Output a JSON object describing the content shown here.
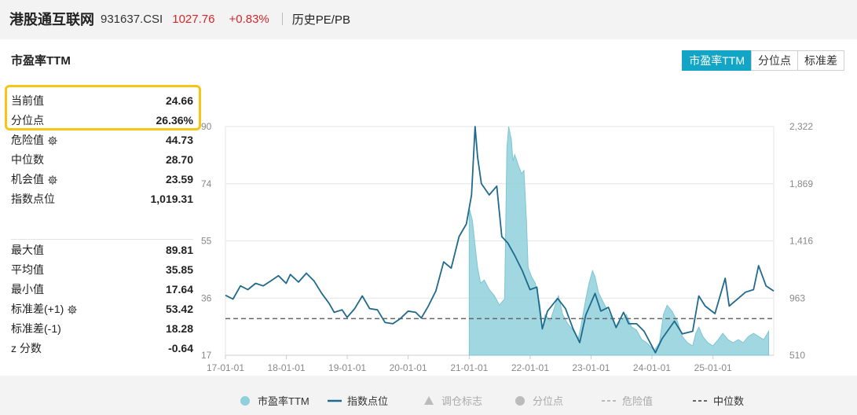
{
  "header": {
    "name": "港股通互联网",
    "code": "931637.CSI",
    "price": "1027.76",
    "change": "+0.83%",
    "history_link": "历史PE/PB"
  },
  "card": {
    "title": "市盈率TTM",
    "tabs": [
      {
        "label": "市盈率TTM",
        "active": true
      },
      {
        "label": "分位点",
        "active": false
      },
      {
        "label": "标准差",
        "active": false
      }
    ]
  },
  "stats": [
    {
      "label": "当前值",
      "value": "24.66",
      "gear": false
    },
    {
      "label": "分位点",
      "value": "26.36%",
      "gear": false
    },
    {
      "label": "危险值",
      "value": "44.73",
      "gear": true
    },
    {
      "label": "中位数",
      "value": "28.70",
      "gear": false
    },
    {
      "label": "机会值",
      "value": "23.59",
      "gear": true
    },
    {
      "label": "指数点位",
      "value": "1,019.31",
      "gear": false
    }
  ],
  "stats2": [
    {
      "label": "最大值",
      "value": "89.81",
      "gear": false
    },
    {
      "label": "平均值",
      "value": "35.85",
      "gear": false
    },
    {
      "label": "最小值",
      "value": "17.64",
      "gear": false
    },
    {
      "label": "标准差(+1)",
      "value": "53.42",
      "gear": true
    },
    {
      "label": "标准差(-1)",
      "value": "18.28",
      "gear": false
    },
    {
      "label": "z 分数",
      "value": "-0.64",
      "gear": false
    }
  ],
  "colors": {
    "pe_fill": "#8fd0dc",
    "index_line": "#1f6a8c",
    "median_line": "#666666",
    "accent": "#13a5c6",
    "highlight": "#f5c518"
  },
  "chart_data": {
    "type": "line",
    "x_tick_labels": [
      "17-01-01",
      "18-01-01",
      "19-01-01",
      "20-01-01",
      "21-01-01",
      "22-01-01",
      "23-01-01",
      "24-01-01",
      "25-01-01"
    ],
    "x_range": [
      "2017-01-01",
      "2025-12-31"
    ],
    "y_left_ticks": [
      "90",
      "74",
      "55",
      "36",
      "17"
    ],
    "y_left_range": [
      17,
      90
    ],
    "y_right_ticks": [
      "2,322",
      "1,869",
      "1,416",
      "963",
      "510"
    ],
    "y_right_range": [
      510,
      2322
    ],
    "median_pe": 28.7,
    "series": [
      {
        "name": "市盈率TTM",
        "axis": "left",
        "style": "area",
        "start": "2021-01-01",
        "points": [
          [
            "2021-01-01",
            64
          ],
          [
            "2021-01-20",
            60
          ],
          [
            "2021-02-05",
            52
          ],
          [
            "2021-02-20",
            45
          ],
          [
            "2021-03-10",
            40
          ],
          [
            "2021-04-01",
            41
          ],
          [
            "2021-05-01",
            38
          ],
          [
            "2021-06-01",
            36
          ],
          [
            "2021-07-01",
            33
          ],
          [
            "2021-08-01",
            35
          ],
          [
            "2021-08-15",
            83
          ],
          [
            "2021-08-25",
            90
          ],
          [
            "2021-09-10",
            86
          ],
          [
            "2021-09-20",
            79
          ],
          [
            "2021-10-01",
            81
          ],
          [
            "2021-10-20",
            78
          ],
          [
            "2021-11-10",
            75
          ],
          [
            "2021-11-25",
            76
          ],
          [
            "2021-12-10",
            60
          ],
          [
            "2021-12-20",
            45
          ],
          [
            "2022-01-10",
            42
          ],
          [
            "2022-02-01",
            40
          ],
          [
            "2022-03-01",
            33
          ],
          [
            "2022-03-15",
            25
          ],
          [
            "2022-04-01",
            30
          ],
          [
            "2022-05-01",
            28
          ],
          [
            "2022-06-01",
            33
          ],
          [
            "2022-06-20",
            36
          ],
          [
            "2022-07-15",
            30
          ],
          [
            "2022-08-15",
            27
          ],
          [
            "2022-09-15",
            25
          ],
          [
            "2022-10-15",
            22
          ],
          [
            "2022-11-01",
            26
          ],
          [
            "2022-12-01",
            35
          ],
          [
            "2022-12-20",
            40
          ],
          [
            "2023-01-10",
            44
          ],
          [
            "2023-01-25",
            42
          ],
          [
            "2023-02-15",
            37
          ],
          [
            "2023-03-15",
            34
          ],
          [
            "2023-05-01",
            29
          ],
          [
            "2023-06-01",
            26
          ],
          [
            "2023-07-01",
            28
          ],
          [
            "2023-08-01",
            30
          ],
          [
            "2023-09-01",
            26
          ],
          [
            "2023-10-01",
            25
          ],
          [
            "2023-11-01",
            22
          ],
          [
            "2023-12-01",
            21
          ],
          [
            "2024-01-15",
            18.5
          ],
          [
            "2024-02-15",
            21
          ],
          [
            "2024-03-10",
            30
          ],
          [
            "2024-04-01",
            33
          ],
          [
            "2024-05-01",
            31
          ],
          [
            "2024-06-01",
            28
          ],
          [
            "2024-07-01",
            23
          ],
          [
            "2024-08-01",
            21
          ],
          [
            "2024-09-01",
            20
          ],
          [
            "2024-09-20",
            24
          ],
          [
            "2024-10-08",
            26
          ],
          [
            "2024-11-01",
            23
          ],
          [
            "2024-12-01",
            21
          ],
          [
            "2025-01-01",
            20
          ],
          [
            "2025-02-01",
            22
          ],
          [
            "2025-03-01",
            24
          ],
          [
            "2025-04-01",
            22
          ],
          [
            "2025-05-01",
            21
          ],
          [
            "2025-06-01",
            22
          ],
          [
            "2025-07-01",
            21
          ],
          [
            "2025-08-01",
            23
          ],
          [
            "2025-09-01",
            24
          ],
          [
            "2025-10-01",
            23
          ],
          [
            "2025-11-01",
            22
          ],
          [
            "2025-12-01",
            24.66
          ]
        ]
      },
      {
        "name": "指数点位",
        "axis": "right",
        "style": "line",
        "points": [
          [
            "2017-01-01",
            985
          ],
          [
            "2017-02-15",
            955
          ],
          [
            "2017-04-01",
            1060
          ],
          [
            "2017-05-15",
            1030
          ],
          [
            "2017-07-01",
            1080
          ],
          [
            "2017-08-15",
            1060
          ],
          [
            "2017-10-01",
            1100
          ],
          [
            "2017-11-15",
            1140
          ],
          [
            "2017-12-31",
            1080
          ],
          [
            "2018-01-25",
            1150
          ],
          [
            "2018-03-15",
            1090
          ],
          [
            "2018-05-01",
            1160
          ],
          [
            "2018-06-15",
            1100
          ],
          [
            "2018-08-01",
            1000
          ],
          [
            "2018-09-15",
            920
          ],
          [
            "2018-10-15",
            850
          ],
          [
            "2018-12-01",
            870
          ],
          [
            "2018-12-31",
            810
          ],
          [
            "2019-02-15",
            880
          ],
          [
            "2019-04-01",
            980
          ],
          [
            "2019-05-15",
            880
          ],
          [
            "2019-07-01",
            870
          ],
          [
            "2019-08-15",
            770
          ],
          [
            "2019-10-01",
            760
          ],
          [
            "2019-11-15",
            800
          ],
          [
            "2020-01-01",
            860
          ],
          [
            "2020-02-15",
            850
          ],
          [
            "2020-03-20",
            805
          ],
          [
            "2020-05-01",
            900
          ],
          [
            "2020-06-15",
            1020
          ],
          [
            "2020-08-01",
            1250
          ],
          [
            "2020-09-15",
            1200
          ],
          [
            "2020-11-01",
            1450
          ],
          [
            "2020-12-15",
            1550
          ],
          [
            "2021-01-15",
            1780
          ],
          [
            "2021-02-05",
            2322
          ],
          [
            "2021-02-20",
            2080
          ],
          [
            "2021-03-15",
            1870
          ],
          [
            "2021-05-01",
            1780
          ],
          [
            "2021-06-15",
            1850
          ],
          [
            "2021-07-15",
            1450
          ],
          [
            "2021-08-20",
            1400
          ],
          [
            "2021-10-01",
            1300
          ],
          [
            "2021-11-15",
            1180
          ],
          [
            "2021-12-31",
            1030
          ],
          [
            "2022-02-10",
            1050
          ],
          [
            "2022-03-15",
            720
          ],
          [
            "2022-04-15",
            860
          ],
          [
            "2022-06-15",
            960
          ],
          [
            "2022-08-01",
            880
          ],
          [
            "2022-09-15",
            720
          ],
          [
            "2022-10-25",
            610
          ],
          [
            "2022-12-01",
            830
          ],
          [
            "2023-01-25",
            1000
          ],
          [
            "2023-03-01",
            860
          ],
          [
            "2023-04-15",
            890
          ],
          [
            "2023-05-31",
            730
          ],
          [
            "2023-07-15",
            850
          ],
          [
            "2023-08-15",
            760
          ],
          [
            "2023-10-01",
            760
          ],
          [
            "2023-11-15",
            700
          ],
          [
            "2024-01-22",
            530
          ],
          [
            "2024-03-01",
            640
          ],
          [
            "2024-05-15",
            780
          ],
          [
            "2024-07-01",
            680
          ],
          [
            "2024-09-01",
            700
          ],
          [
            "2024-10-08",
            980
          ],
          [
            "2024-11-15",
            900
          ],
          [
            "2025-01-13",
            840
          ],
          [
            "2025-03-15",
            1120
          ],
          [
            "2025-04-08",
            900
          ],
          [
            "2025-06-01",
            960
          ],
          [
            "2025-07-15",
            1010
          ],
          [
            "2025-09-01",
            1030
          ],
          [
            "2025-10-01",
            1220
          ],
          [
            "2025-11-15",
            1060
          ],
          [
            "2025-12-31",
            1019.31
          ]
        ]
      }
    ],
    "legend": [
      {
        "label": "市盈率TTM",
        "kind": "dot",
        "color": "#8fd0dc",
        "active": true
      },
      {
        "label": "指数点位",
        "kind": "line",
        "color": "#1f6a8c",
        "active": true
      },
      {
        "label": "调仓标志",
        "kind": "triangle",
        "color": "#bbbbbb",
        "active": false
      },
      {
        "label": "分位点",
        "kind": "dot",
        "color": "#bbbbbb",
        "active": false
      },
      {
        "label": "危险值",
        "kind": "dash",
        "color": "#bbbbbb",
        "active": false
      },
      {
        "label": "中位数",
        "kind": "dash",
        "color": "#666666",
        "active": true
      }
    ],
    "legend_position": "bottom"
  }
}
